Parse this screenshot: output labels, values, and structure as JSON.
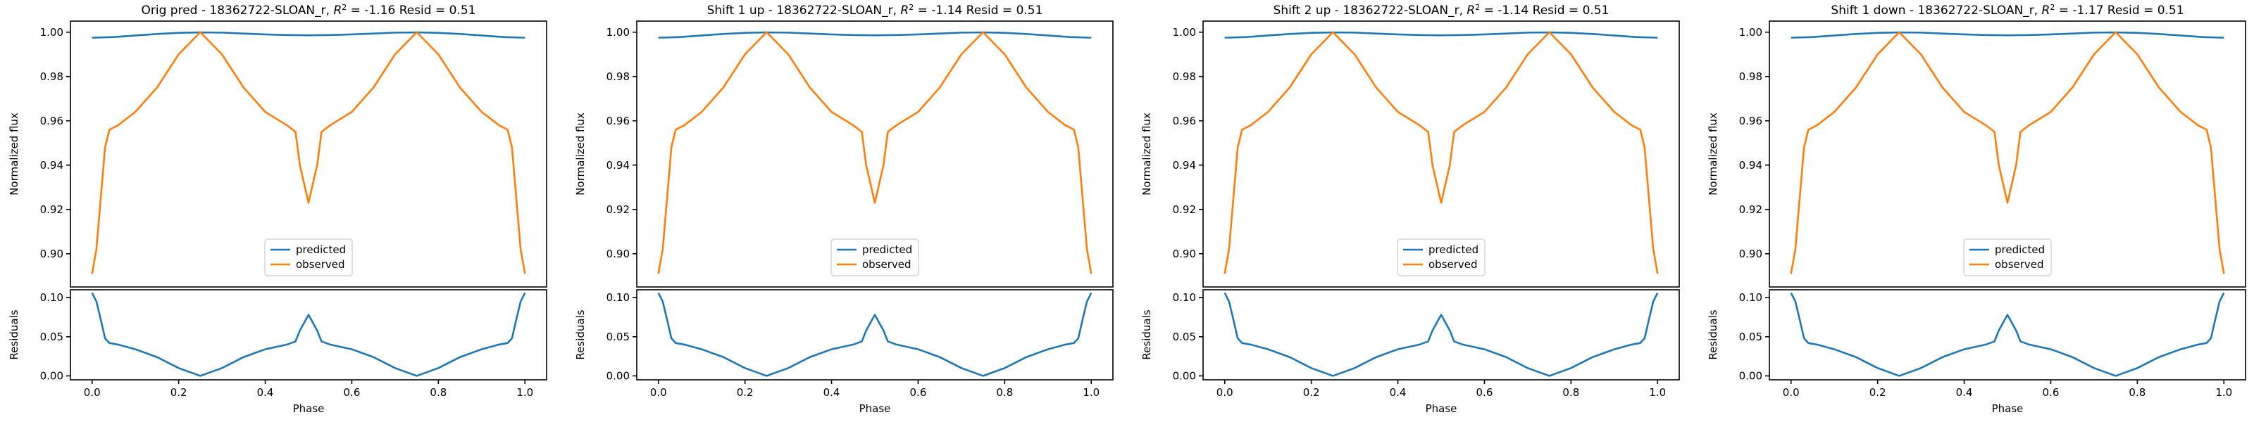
{
  "chart_data": [
    {
      "type": "line",
      "title": "Orig pred - 18362722-SLOAN_r, R² = -1.16 Resid = 0.51",
      "title_parts": {
        "pre": "Orig pred - 18362722-SLOAN_r, ",
        "r2": "R",
        "sup": "2",
        "post": " = -1.16 Resid = 0.51"
      },
      "ylabel": "Normalized flux",
      "resid_ylabel": "Residuals",
      "xlabel": "Phase",
      "legend": [
        "predicted",
        "observed"
      ]
    },
    {
      "type": "line",
      "title": "Shift 1 up - 18362722-SLOAN_r, R² = -1.14 Resid = 0.51",
      "title_parts": {
        "pre": "Shift 1 up - 18362722-SLOAN_r, ",
        "r2": "R",
        "sup": "2",
        "post": " = -1.14 Resid = 0.51"
      },
      "ylabel": "Normalized flux",
      "resid_ylabel": "Residuals",
      "xlabel": "Phase",
      "legend": [
        "predicted",
        "observed"
      ]
    },
    {
      "type": "line",
      "title": "Shift 2 up - 18362722-SLOAN_r, R² = -1.14 Resid = 0.51",
      "title_parts": {
        "pre": "Shift 2 up - 18362722-SLOAN_r, ",
        "r2": "R",
        "sup": "2",
        "post": " = -1.14 Resid = 0.51"
      },
      "ylabel": "Normalized flux",
      "resid_ylabel": "Residuals",
      "xlabel": "Phase",
      "legend": [
        "predicted",
        "observed"
      ]
    },
    {
      "type": "line",
      "title": "Shift 1 down - 18362722-SLOAN_r, R² = -1.17 Resid = 0.51",
      "title_parts": {
        "pre": "Shift 1 down - 18362722-SLOAN_r, ",
        "r2": "R",
        "sup": "2",
        "post": " = -1.17 Resid = 0.51"
      },
      "ylabel": "Normalized flux",
      "resid_ylabel": "Residuals",
      "xlabel": "Phase",
      "legend": [
        "predicted",
        "observed"
      ]
    }
  ],
  "shared": {
    "x_range": [
      -0.05,
      1.05
    ],
    "x_ticks": [
      0.0,
      0.2,
      0.4,
      0.6,
      0.8,
      1.0
    ],
    "x_tick_labels": [
      "0.0",
      "0.2",
      "0.4",
      "0.6",
      "0.8",
      "1.0"
    ],
    "main_y_range": [
      0.885,
      1.005
    ],
    "main_y_ticks": [
      0.9,
      0.92,
      0.94,
      0.96,
      0.98,
      1.0
    ],
    "main_y_tick_labels": [
      "0.90",
      "0.92",
      "0.94",
      "0.96",
      "0.98",
      "1.00"
    ],
    "resid_y_range": [
      -0.005,
      0.11
    ],
    "resid_y_ticks": [
      0.0,
      0.05,
      0.1
    ],
    "resid_y_tick_labels": [
      "0.00",
      "0.05",
      "0.10"
    ],
    "legend_position": "lower center",
    "grid": false,
    "colors": {
      "predicted": "#1f77b4",
      "observed": "#ff7f0e",
      "residuals": "#1f77b4"
    },
    "series": [
      {
        "name": "predicted",
        "x": [
          0.0,
          0.05,
          0.1,
          0.15,
          0.2,
          0.25,
          0.3,
          0.35,
          0.4,
          0.45,
          0.5,
          0.55,
          0.6,
          0.65,
          0.7,
          0.75,
          0.8,
          0.85,
          0.9,
          0.95,
          1.0
        ],
        "y": [
          0.9975,
          0.9978,
          0.9985,
          0.9992,
          0.9997,
          0.9999,
          0.9998,
          0.9994,
          0.999,
          0.9987,
          0.9986,
          0.9987,
          0.999,
          0.9994,
          0.9998,
          0.9999,
          0.9997,
          0.9992,
          0.9985,
          0.9978,
          0.9975
        ]
      },
      {
        "name": "observed",
        "x": [
          0.0,
          0.01,
          0.02,
          0.03,
          0.04,
          0.06,
          0.1,
          0.15,
          0.2,
          0.25,
          0.3,
          0.35,
          0.4,
          0.45,
          0.47,
          0.48,
          0.5,
          0.52,
          0.53,
          0.55,
          0.6,
          0.65,
          0.7,
          0.75,
          0.8,
          0.85,
          0.9,
          0.94,
          0.96,
          0.97,
          0.98,
          0.99,
          1.0
        ],
        "y": [
          0.891,
          0.902,
          0.925,
          0.948,
          0.956,
          0.958,
          0.964,
          0.975,
          0.99,
          1.0,
          0.99,
          0.975,
          0.964,
          0.958,
          0.955,
          0.94,
          0.923,
          0.94,
          0.955,
          0.958,
          0.964,
          0.975,
          0.99,
          1.0,
          0.99,
          0.975,
          0.964,
          0.958,
          0.956,
          0.948,
          0.925,
          0.902,
          0.891
        ]
      }
    ],
    "residuals": {
      "x": [
        0.0,
        0.01,
        0.02,
        0.03,
        0.04,
        0.06,
        0.1,
        0.15,
        0.2,
        0.25,
        0.3,
        0.35,
        0.4,
        0.45,
        0.47,
        0.48,
        0.5,
        0.52,
        0.53,
        0.55,
        0.6,
        0.65,
        0.7,
        0.75,
        0.8,
        0.85,
        0.9,
        0.94,
        0.96,
        0.97,
        0.98,
        0.99,
        1.0
      ],
      "y": [
        0.106,
        0.095,
        0.072,
        0.048,
        0.042,
        0.04,
        0.034,
        0.024,
        0.01,
        0.0,
        0.01,
        0.024,
        0.034,
        0.04,
        0.044,
        0.058,
        0.078,
        0.058,
        0.044,
        0.04,
        0.034,
        0.024,
        0.01,
        0.0,
        0.01,
        0.024,
        0.034,
        0.04,
        0.042,
        0.048,
        0.072,
        0.095,
        0.106
      ]
    }
  }
}
